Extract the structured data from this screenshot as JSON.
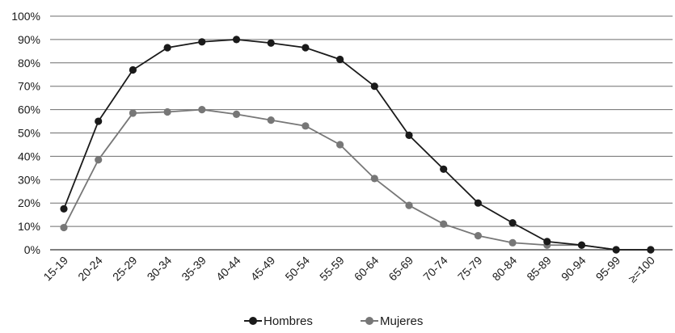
{
  "chart_data": {
    "type": "line",
    "categories": [
      "15-19",
      "20-24",
      "25-29",
      "30-34",
      "35-39",
      "40-44",
      "45-49",
      "50-54",
      "55-59",
      "60-64",
      "65-69",
      "70-74",
      "75-79",
      "80-84",
      "85-89",
      "90-94",
      "95-99",
      "≥=100"
    ],
    "series": [
      {
        "name": "Hombres",
        "color": "#1a1a1a",
        "values": [
          17.5,
          55,
          77,
          86.5,
          89,
          90,
          88.5,
          86.5,
          81.5,
          70,
          49,
          34.5,
          20,
          11.5,
          3.5,
          2,
          0,
          0
        ]
      },
      {
        "name": "Mujeres",
        "color": "#777777",
        "values": [
          9.5,
          38.5,
          58.5,
          59,
          60,
          58,
          55.5,
          53,
          45,
          30.5,
          19,
          11,
          6,
          3,
          2,
          2,
          0,
          0
        ]
      }
    ],
    "y_ticks": [
      "0%",
      "10%",
      "20%",
      "30%",
      "40%",
      "50%",
      "60%",
      "70%",
      "80%",
      "90%",
      "100%"
    ],
    "ylim": [
      0,
      100
    ],
    "grid": "horizontal",
    "legend_position": "bottom-center"
  }
}
